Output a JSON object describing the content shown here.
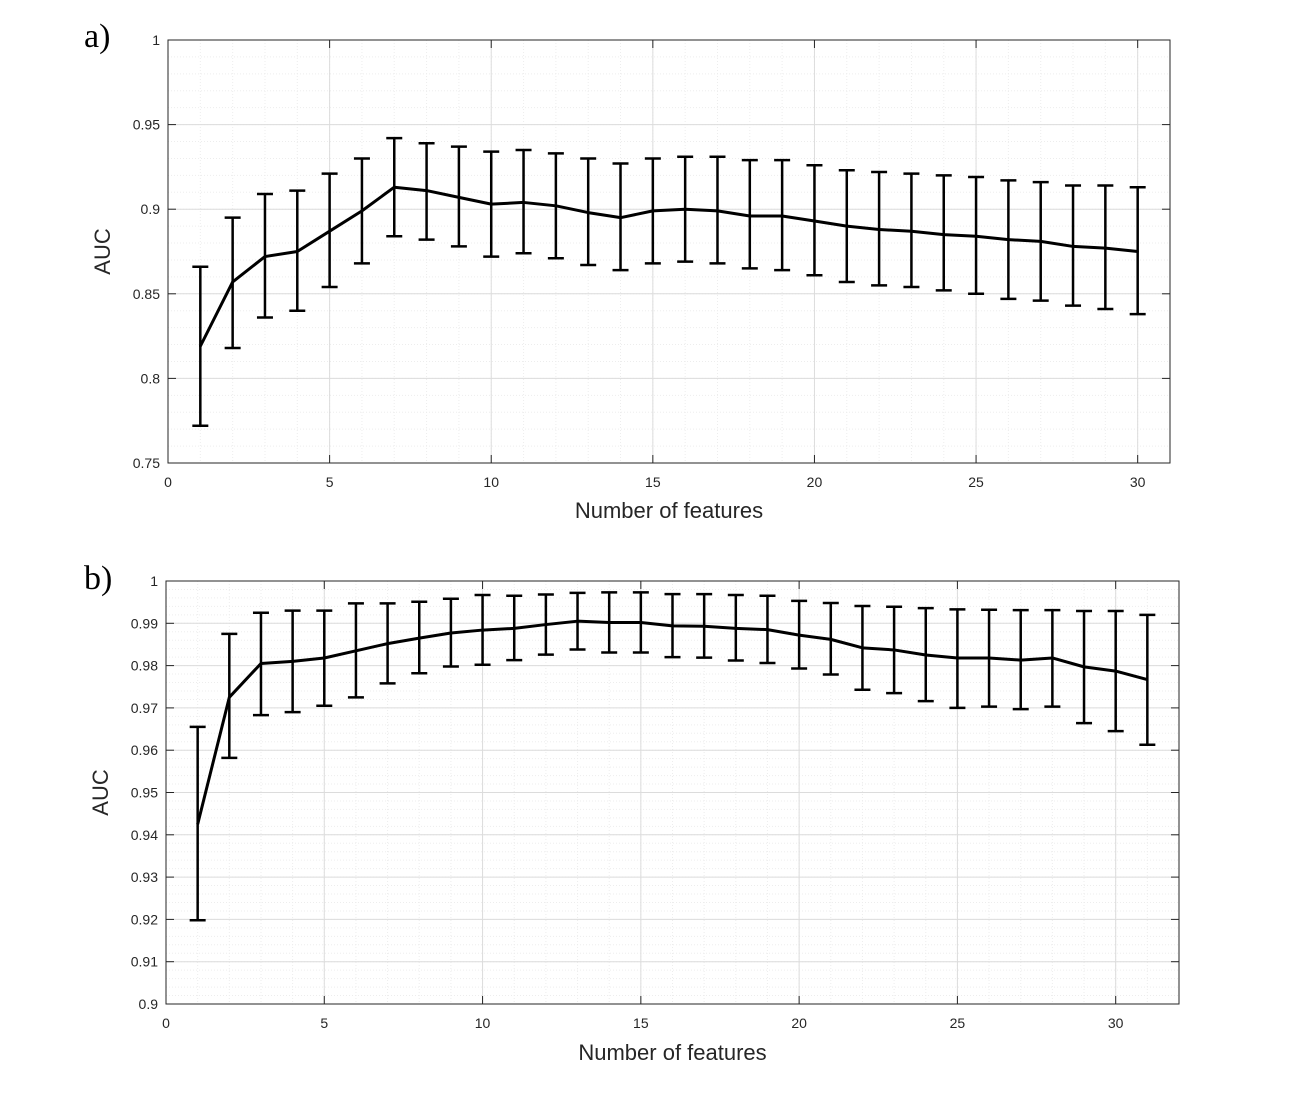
{
  "panels": {
    "a": {
      "label": "a)"
    },
    "b": {
      "label": "b)"
    }
  },
  "colors": {
    "line": "#000000",
    "axis": "#262626",
    "grid_major": "#dcdcdc",
    "grid_minor": "#ededed"
  },
  "chart_data": [
    {
      "type": "line",
      "panel": "a)",
      "xlabel": "Number of features",
      "ylabel": "AUC",
      "xlim": [
        0,
        31
      ],
      "ylim": [
        0.75,
        1
      ],
      "xticks": [
        0,
        5,
        10,
        15,
        20,
        25,
        30
      ],
      "yticks": [
        0.75,
        0.8,
        0.85,
        0.9,
        0.95,
        1
      ],
      "xtick_labels": [
        "0",
        "5",
        "10",
        "15",
        "20",
        "25",
        "30"
      ],
      "ytick_labels": [
        "0.75",
        "0.8",
        "0.85",
        "0.9",
        "0.95",
        "1"
      ],
      "grid": true,
      "minor_grid": true,
      "series": [
        {
          "x": [
            1,
            2,
            3,
            4,
            5,
            6,
            7,
            8,
            9,
            10,
            11,
            12,
            13,
            14,
            15,
            16,
            17,
            18,
            19,
            20,
            21,
            22,
            23,
            24,
            25,
            26,
            27,
            28,
            29,
            30
          ],
          "y": [
            0.819,
            0.857,
            0.872,
            0.875,
            0.887,
            0.899,
            0.913,
            0.911,
            0.907,
            0.903,
            0.904,
            0.902,
            0.898,
            0.895,
            0.899,
            0.9,
            0.899,
            0.896,
            0.896,
            0.893,
            0.89,
            0.888,
            0.887,
            0.885,
            0.884,
            0.882,
            0.881,
            0.878,
            0.877,
            0.875
          ],
          "y_upper": [
            0.866,
            0.895,
            0.909,
            0.911,
            0.921,
            0.93,
            0.942,
            0.939,
            0.937,
            0.934,
            0.935,
            0.933,
            0.93,
            0.927,
            0.93,
            0.931,
            0.931,
            0.929,
            0.929,
            0.926,
            0.923,
            0.922,
            0.921,
            0.92,
            0.919,
            0.917,
            0.916,
            0.914,
            0.914,
            0.913
          ],
          "y_lower": [
            0.772,
            0.818,
            0.836,
            0.84,
            0.854,
            0.868,
            0.884,
            0.882,
            0.878,
            0.872,
            0.874,
            0.871,
            0.867,
            0.864,
            0.868,
            0.869,
            0.868,
            0.865,
            0.864,
            0.861,
            0.857,
            0.855,
            0.854,
            0.852,
            0.85,
            0.847,
            0.846,
            0.843,
            0.841,
            0.838
          ]
        }
      ]
    },
    {
      "type": "line",
      "panel": "b)",
      "xlabel": "Number of features",
      "ylabel": "AUC",
      "xlim": [
        0,
        32
      ],
      "ylim": [
        0.9,
        1
      ],
      "xticks": [
        0,
        5,
        10,
        15,
        20,
        25,
        30
      ],
      "yticks": [
        0.9,
        0.91,
        0.92,
        0.93,
        0.94,
        0.95,
        0.96,
        0.97,
        0.98,
        0.99,
        1
      ],
      "xtick_labels": [
        "0",
        "5",
        "10",
        "15",
        "20",
        "25",
        "30"
      ],
      "ytick_labels": [
        "0.9",
        "0.91",
        "0.92",
        "0.93",
        "0.94",
        "0.95",
        "0.96",
        "0.97",
        "0.98",
        "0.99",
        "1"
      ],
      "grid": true,
      "minor_grid": true,
      "series": [
        {
          "x": [
            1,
            2,
            3,
            4,
            5,
            6,
            7,
            8,
            9,
            10,
            11,
            12,
            13,
            14,
            15,
            16,
            17,
            18,
            19,
            20,
            21,
            22,
            23,
            24,
            25,
            26,
            27,
            28,
            29,
            30,
            31
          ],
          "y": [
            0.9425,
            0.9725,
            0.9805,
            0.981,
            0.9818,
            0.9835,
            0.9852,
            0.9865,
            0.9877,
            0.9884,
            0.9888,
            0.9897,
            0.9905,
            0.9902,
            0.9902,
            0.9894,
            0.9893,
            0.9888,
            0.9885,
            0.9872,
            0.9862,
            0.9842,
            0.9837,
            0.9825,
            0.9818,
            0.9818,
            0.9813,
            0.9818,
            0.9797,
            0.9787,
            0.9767
          ],
          "y_upper": [
            0.9655,
            0.9875,
            0.9925,
            0.993,
            0.993,
            0.9947,
            0.9947,
            0.9951,
            0.9958,
            0.9967,
            0.9965,
            0.9968,
            0.9972,
            0.9973,
            0.9973,
            0.9969,
            0.9969,
            0.9967,
            0.9965,
            0.9953,
            0.9948,
            0.9941,
            0.9939,
            0.9936,
            0.9933,
            0.9932,
            0.9931,
            0.9931,
            0.9929,
            0.9929,
            0.992
          ],
          "y_lower": [
            0.9198,
            0.9582,
            0.9683,
            0.969,
            0.9705,
            0.9725,
            0.9758,
            0.9782,
            0.9798,
            0.9802,
            0.9813,
            0.9826,
            0.9838,
            0.9831,
            0.9831,
            0.982,
            0.9819,
            0.9812,
            0.9806,
            0.9793,
            0.9779,
            0.9743,
            0.9735,
            0.9716,
            0.97,
            0.9703,
            0.9697,
            0.9703,
            0.9664,
            0.9645,
            0.9613
          ]
        }
      ]
    }
  ]
}
